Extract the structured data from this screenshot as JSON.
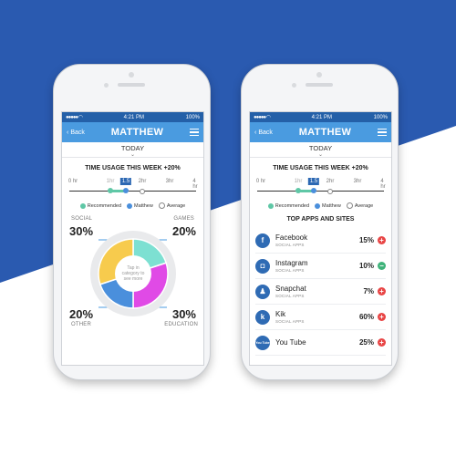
{
  "colors": {
    "blue_bg": "#2a5ab0",
    "nav": "#4a9be0",
    "status": "#2460a8",
    "teal": "#5fc7a6",
    "matthew": "#4a8fdc",
    "social": "#f7cb4d",
    "games": "#7de0d2",
    "education": "#e04ae6",
    "other": "#4a8fdc",
    "plus": "#e84545",
    "minus": "#3fb37a"
  },
  "status": {
    "time": "4:21 PM",
    "battery": "100%"
  },
  "nav": {
    "back": "Back",
    "title": "MATTHEW"
  },
  "today": "TODAY",
  "usage_title": "TIME USAGE THIS WEEK +20%",
  "ticks": [
    "0 hr",
    "1hr",
    "1.5",
    "2hr",
    "3hr",
    "4 hr"
  ],
  "legend": [
    "Recommended",
    "Matthew",
    "Average"
  ],
  "chart": {
    "tap_text_1": "Tap in",
    "tap_text_2": "category to",
    "tap_text_3": "see more",
    "categories": [
      {
        "name": "SOCIAL",
        "value": "30%"
      },
      {
        "name": "GAMES",
        "value": "20%"
      },
      {
        "name": "OTHER",
        "value": "20%"
      },
      {
        "name": "EDUCATION",
        "value": "30%"
      }
    ]
  },
  "top_apps_title": "TOP APPS AND SITES",
  "apps": [
    {
      "name": "Facebook",
      "sub": "SOCIAL APPS",
      "value": "15%",
      "icon": "f",
      "action": "+"
    },
    {
      "name": "Instagram",
      "sub": "SOCIAL APPS",
      "value": "10%",
      "icon": "◘",
      "action": "−"
    },
    {
      "name": "Snapchat",
      "sub": "SOCIAL APPS",
      "value": "7%",
      "icon": "♟",
      "action": "+"
    },
    {
      "name": "Kik",
      "sub": "SOCIAL APPS",
      "value": "60%",
      "icon": "k",
      "action": "+"
    },
    {
      "name": "You Tube",
      "sub": "",
      "value": "25%",
      "icon": "You Tube",
      "action": "+"
    }
  ]
}
